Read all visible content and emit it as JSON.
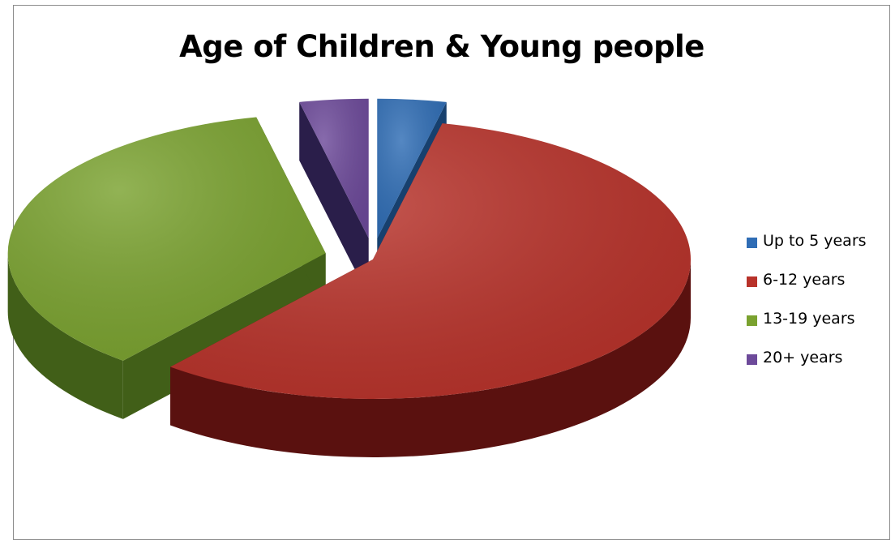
{
  "chart_data": {
    "type": "pie",
    "title": "Age of Children & Young people",
    "categories": [
      "Up to 5 years",
      "6-12 years",
      "13-19 years",
      "20+ years"
    ],
    "values": [
      3.5,
      57.5,
      35.5,
      3.5
    ],
    "colors": [
      "#2f6db5",
      "#b8322a",
      "#7aa22f",
      "#6d4a9a"
    ],
    "side_colors": [
      "#17406e",
      "#5a110f",
      "#415f18",
      "#2a1e4a"
    ],
    "legend_position": "right",
    "exploded": true,
    "three_d": true
  }
}
